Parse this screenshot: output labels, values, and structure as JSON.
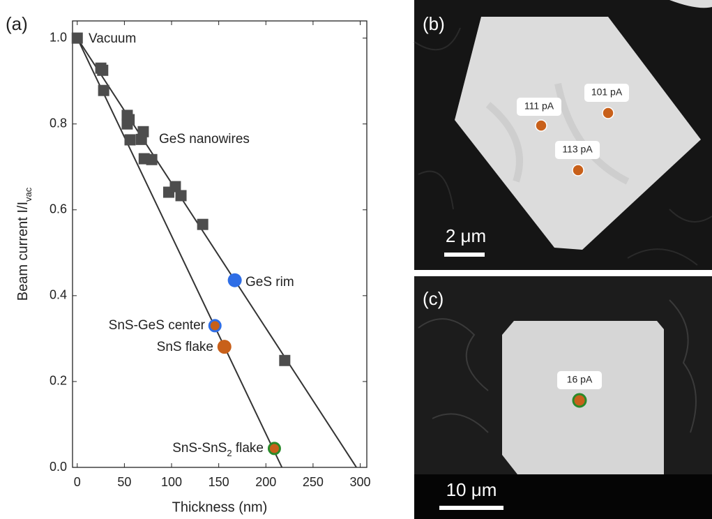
{
  "chart_data": {
    "type": "scatter",
    "panel_label": "(a)",
    "xlabel": "Thickness (nm)",
    "ylabel": "Beam current I/I",
    "ylabel_sub": "vac",
    "xlim": [
      -5,
      307
    ],
    "ylim": [
      0,
      1.04
    ],
    "xticks": [
      0,
      50,
      100,
      150,
      200,
      250,
      300
    ],
    "yticks": [
      {
        "value": 0,
        "label": "0.0"
      },
      0.2,
      0.4,
      0.6,
      0.8,
      {
        "value": 1,
        "label": "1.0"
      }
    ],
    "series": [
      {
        "marker": "square",
        "color": "#4d4d4d",
        "x": [
          0,
          25,
          27,
          28,
          53,
          53,
          55,
          56,
          68,
          70,
          71,
          79,
          97,
          104,
          110,
          133,
          220
        ],
        "values": [
          1.0,
          0.93,
          0.925,
          0.878,
          0.8,
          0.82,
          0.81,
          0.763,
          0.764,
          0.782,
          0.719,
          0.717,
          0.641,
          0.654,
          0.633,
          0.566,
          0.249
        ]
      },
      {
        "marker": "circle",
        "color": "#2f6ee6",
        "x": [
          167
        ],
        "values": [
          0.436
        ]
      },
      {
        "marker": "circle",
        "color": "#c8601a",
        "edgecolor": "#2f6ee6",
        "x": [
          146
        ],
        "values": [
          0.33
        ]
      },
      {
        "marker": "circle",
        "color": "#c8601a",
        "x": [
          156
        ],
        "values": [
          0.281
        ]
      },
      {
        "marker": "circle",
        "color": "#c8601a",
        "edgecolor": "#2a8a2a",
        "x": [
          209
        ],
        "values": [
          0.044
        ]
      }
    ],
    "lines": [
      {
        "color": "#333333",
        "x": [
          0,
          296
        ],
        "values": [
          1,
          0
        ]
      },
      {
        "color": "#333333",
        "x": [
          0,
          217
        ],
        "values": [
          1,
          0
        ]
      }
    ],
    "annotations": [
      {
        "text": "Vacuum"
      },
      {
        "text": "GeS nanowires"
      },
      {
        "text": "GeS rim"
      },
      {
        "text": "SnS-GeS center"
      },
      {
        "text": "SnS flake"
      },
      {
        "text": "SnS-SnS",
        "sub": "2",
        "tail": " flake"
      }
    ]
  },
  "micrographs": [
    {
      "label": "(b)",
      "current_labels": [
        "111 pA",
        "101 pA",
        "113 pA"
      ],
      "scale_bar": "2 μm"
    },
    {
      "label": "(c)",
      "current_labels": [
        "16 pA"
      ],
      "scale_bar": "10 μm"
    }
  ]
}
